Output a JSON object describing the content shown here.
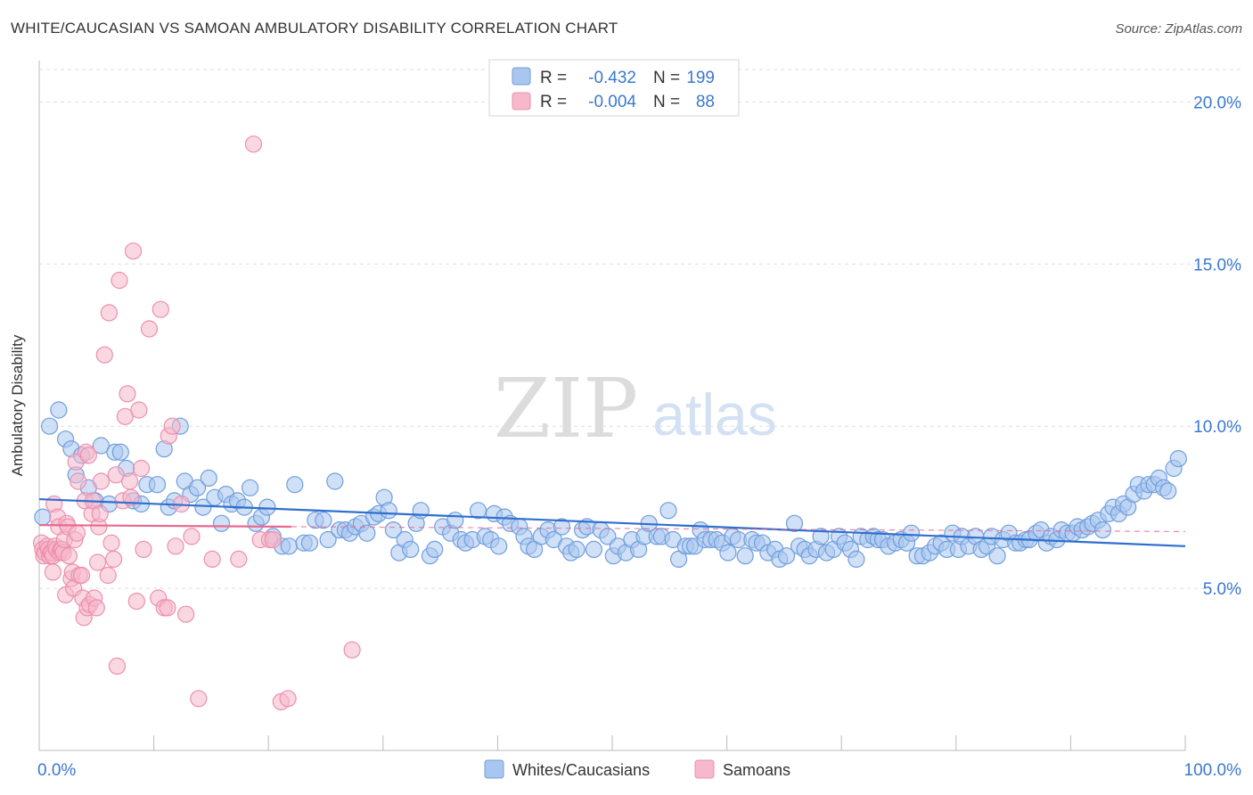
{
  "title": "WHITE/CAUCASIAN VS SAMOAN AMBULATORY DISABILITY CORRELATION CHART",
  "source": "Source: ZipAtlas.com",
  "watermark": {
    "zip": "ZIP",
    "atlas": "atlas"
  },
  "chart_data": {
    "type": "scatter",
    "ylabel": "Ambulatory Disability",
    "xlim": [
      0,
      100
    ],
    "ylim": [
      0,
      21
    ],
    "x_tick_labels": [
      {
        "value": 0,
        "label": "0.0%"
      },
      {
        "value": 100,
        "label": "100.0%"
      }
    ],
    "y_tick_labels": [
      {
        "value": 5,
        "label": "5.0%"
      },
      {
        "value": 10,
        "label": "10.0%"
      },
      {
        "value": 15,
        "label": "15.0%"
      },
      {
        "value": 20,
        "label": "20.0%"
      }
    ],
    "legend_stats": [
      {
        "r_label": "R =",
        "r_value": "-0.432",
        "n_label": "N =",
        "n_value": "199",
        "color": "#7aa6e0"
      },
      {
        "r_label": "R =",
        "r_value": "-0.004",
        "n_label": "N =",
        "n_value": "88",
        "color": "#f19bb6"
      }
    ],
    "series": [
      {
        "name": "Whites/Caucasians",
        "fill": "#a9c6ee",
        "stroke": "#6f9ede",
        "line_color": "#2f6fce",
        "trend": {
          "x": [
            0,
            100
          ],
          "y": [
            7.75,
            6.3
          ]
        },
        "points": [
          [
            0.3,
            7.2
          ],
          [
            0.9,
            10.0
          ],
          [
            1.7,
            10.5
          ],
          [
            2.3,
            9.6
          ],
          [
            2.8,
            9.3
          ],
          [
            3.2,
            8.5
          ],
          [
            3.7,
            9.1
          ],
          [
            4.3,
            8.1
          ],
          [
            4.9,
            7.7
          ],
          [
            5.4,
            9.4
          ],
          [
            6.1,
            7.6
          ],
          [
            6.6,
            9.2
          ],
          [
            7.1,
            9.2
          ],
          [
            7.6,
            8.7
          ],
          [
            8.2,
            7.7
          ],
          [
            8.9,
            7.6
          ],
          [
            9.4,
            8.2
          ],
          [
            10.3,
            8.2
          ],
          [
            10.9,
            9.3
          ],
          [
            11.3,
            7.5
          ],
          [
            11.8,
            7.7
          ],
          [
            12.3,
            10.0
          ],
          [
            12.7,
            8.3
          ],
          [
            13.2,
            7.9
          ],
          [
            13.8,
            8.1
          ],
          [
            14.3,
            7.5
          ],
          [
            14.8,
            8.4
          ],
          [
            15.3,
            7.8
          ],
          [
            15.9,
            7.0
          ],
          [
            16.3,
            7.9
          ],
          [
            16.8,
            7.6
          ],
          [
            17.3,
            7.7
          ],
          [
            17.9,
            7.5
          ],
          [
            18.4,
            8.1
          ],
          [
            18.9,
            7.0
          ],
          [
            19.4,
            7.2
          ],
          [
            19.9,
            7.5
          ],
          [
            20.4,
            6.6
          ],
          [
            21.2,
            6.3
          ],
          [
            21.8,
            6.3
          ],
          [
            22.3,
            8.2
          ],
          [
            23.1,
            6.4
          ],
          [
            23.6,
            6.4
          ],
          [
            24.1,
            7.1
          ],
          [
            24.8,
            7.1
          ],
          [
            25.2,
            6.5
          ],
          [
            25.8,
            8.3
          ],
          [
            26.2,
            6.8
          ],
          [
            26.7,
            6.8
          ],
          [
            27.1,
            6.7
          ],
          [
            27.6,
            6.9
          ],
          [
            28.1,
            7.0
          ],
          [
            28.6,
            6.7
          ],
          [
            29.2,
            7.2
          ],
          [
            29.6,
            7.3
          ],
          [
            30.1,
            7.8
          ],
          [
            30.5,
            7.4
          ],
          [
            30.9,
            6.8
          ],
          [
            31.4,
            6.1
          ],
          [
            31.9,
            6.5
          ],
          [
            32.4,
            6.2
          ],
          [
            32.9,
            7.0
          ],
          [
            33.3,
            7.4
          ],
          [
            34.1,
            6.0
          ],
          [
            34.5,
            6.2
          ],
          [
            35.2,
            6.9
          ],
          [
            35.9,
            6.7
          ],
          [
            36.3,
            7.1
          ],
          [
            36.8,
            6.5
          ],
          [
            37.2,
            6.4
          ],
          [
            37.8,
            6.5
          ],
          [
            38.3,
            7.4
          ],
          [
            38.9,
            6.6
          ],
          [
            39.4,
            6.5
          ],
          [
            39.7,
            7.3
          ],
          [
            40.1,
            6.3
          ],
          [
            40.6,
            7.2
          ],
          [
            41.1,
            7.0
          ],
          [
            41.9,
            6.9
          ],
          [
            42.3,
            6.6
          ],
          [
            42.7,
            6.3
          ],
          [
            43.2,
            6.2
          ],
          [
            43.8,
            6.6
          ],
          [
            44.4,
            6.8
          ],
          [
            44.9,
            6.5
          ],
          [
            45.6,
            6.9
          ],
          [
            46.0,
            6.3
          ],
          [
            46.4,
            6.1
          ],
          [
            46.9,
            6.2
          ],
          [
            47.4,
            6.8
          ],
          [
            47.8,
            6.9
          ],
          [
            48.4,
            6.2
          ],
          [
            49.0,
            6.8
          ],
          [
            49.6,
            6.6
          ],
          [
            50.1,
            6.0
          ],
          [
            50.5,
            6.3
          ],
          [
            51.2,
            6.1
          ],
          [
            51.7,
            6.5
          ],
          [
            52.3,
            6.2
          ],
          [
            52.8,
            6.6
          ],
          [
            53.2,
            7.0
          ],
          [
            53.9,
            6.6
          ],
          [
            54.3,
            6.6
          ],
          [
            54.9,
            7.4
          ],
          [
            55.3,
            6.5
          ],
          [
            55.8,
            5.9
          ],
          [
            56.4,
            6.3
          ],
          [
            56.8,
            6.3
          ],
          [
            57.2,
            6.3
          ],
          [
            57.7,
            6.8
          ],
          [
            58.1,
            6.5
          ],
          [
            58.6,
            6.5
          ],
          [
            59.1,
            6.5
          ],
          [
            59.6,
            6.4
          ],
          [
            60.1,
            6.1
          ],
          [
            60.5,
            6.6
          ],
          [
            61.0,
            6.5
          ],
          [
            61.6,
            6.0
          ],
          [
            62.2,
            6.5
          ],
          [
            62.6,
            6.4
          ],
          [
            63.1,
            6.4
          ],
          [
            63.6,
            6.1
          ],
          [
            64.2,
            6.2
          ],
          [
            64.6,
            5.9
          ],
          [
            65.2,
            6.0
          ],
          [
            65.9,
            7.0
          ],
          [
            66.3,
            6.3
          ],
          [
            66.8,
            6.2
          ],
          [
            67.2,
            6.0
          ],
          [
            67.8,
            6.2
          ],
          [
            68.2,
            6.6
          ],
          [
            68.7,
            6.1
          ],
          [
            69.3,
            6.2
          ],
          [
            69.8,
            6.6
          ],
          [
            70.3,
            6.4
          ],
          [
            70.8,
            6.2
          ],
          [
            71.3,
            5.9
          ],
          [
            71.7,
            6.6
          ],
          [
            72.3,
            6.5
          ],
          [
            72.8,
            6.6
          ],
          [
            73.2,
            6.5
          ],
          [
            73.6,
            6.5
          ],
          [
            74.1,
            6.3
          ],
          [
            74.7,
            6.4
          ],
          [
            75.2,
            6.5
          ],
          [
            75.7,
            6.4
          ],
          [
            76.1,
            6.7
          ],
          [
            76.6,
            6.0
          ],
          [
            77.1,
            6.0
          ],
          [
            77.7,
            6.1
          ],
          [
            78.2,
            6.3
          ],
          [
            78.7,
            6.4
          ],
          [
            79.2,
            6.2
          ],
          [
            79.7,
            6.7
          ],
          [
            80.2,
            6.2
          ],
          [
            80.5,
            6.6
          ],
          [
            81.1,
            6.3
          ],
          [
            81.7,
            6.6
          ],
          [
            82.2,
            6.2
          ],
          [
            82.7,
            6.3
          ],
          [
            83.1,
            6.6
          ],
          [
            83.6,
            6.0
          ],
          [
            84.1,
            6.5
          ],
          [
            84.6,
            6.7
          ],
          [
            85.2,
            6.4
          ],
          [
            85.6,
            6.4
          ],
          [
            86.1,
            6.5
          ],
          [
            86.4,
            6.5
          ],
          [
            87.0,
            6.7
          ],
          [
            87.4,
            6.8
          ],
          [
            87.9,
            6.4
          ],
          [
            88.3,
            6.6
          ],
          [
            88.8,
            6.5
          ],
          [
            89.2,
            6.8
          ],
          [
            89.7,
            6.7
          ],
          [
            90.2,
            6.7
          ],
          [
            90.6,
            6.9
          ],
          [
            91.0,
            6.8
          ],
          [
            91.5,
            6.9
          ],
          [
            91.9,
            7.0
          ],
          [
            92.4,
            7.1
          ],
          [
            92.8,
            6.8
          ],
          [
            93.3,
            7.3
          ],
          [
            93.7,
            7.5
          ],
          [
            94.2,
            7.3
          ],
          [
            94.6,
            7.6
          ],
          [
            95.0,
            7.5
          ],
          [
            95.5,
            7.9
          ],
          [
            95.9,
            8.2
          ],
          [
            96.4,
            8.0
          ],
          [
            96.8,
            8.2
          ],
          [
            97.3,
            8.2
          ],
          [
            97.7,
            8.4
          ],
          [
            98.1,
            8.1
          ],
          [
            98.5,
            8.0
          ],
          [
            99.0,
            8.7
          ],
          [
            99.4,
            9.0
          ]
        ]
      },
      {
        "name": "Samoans",
        "fill": "#f6b8cb",
        "stroke": "#ec8fae",
        "line_color": "#e8698f",
        "trend": {
          "x": [
            0,
            22
          ],
          "y": [
            6.95,
            6.9
          ]
        },
        "trend_dashed": {
          "x": [
            22,
            100
          ],
          "y": [
            6.9,
            6.75
          ]
        },
        "points": [
          [
            0.2,
            6.4
          ],
          [
            0.3,
            6.2
          ],
          [
            0.4,
            6.0
          ],
          [
            0.5,
            6.1
          ],
          [
            0.7,
            6.3
          ],
          [
            0.8,
            6.2
          ],
          [
            0.9,
            6.0
          ],
          [
            1.0,
            6.1
          ],
          [
            1.1,
            6.1
          ],
          [
            1.2,
            6.0
          ],
          [
            1.2,
            5.5
          ],
          [
            1.3,
            7.6
          ],
          [
            1.4,
            6.3
          ],
          [
            1.5,
            6.2
          ],
          [
            1.6,
            7.2
          ],
          [
            1.7,
            6.9
          ],
          [
            1.8,
            6.1
          ],
          [
            1.9,
            6.2
          ],
          [
            2.0,
            6.2
          ],
          [
            2.1,
            6.1
          ],
          [
            2.2,
            6.5
          ],
          [
            2.3,
            4.8
          ],
          [
            2.4,
            7.0
          ],
          [
            2.5,
            6.9
          ],
          [
            2.6,
            6.0
          ],
          [
            2.8,
            5.3
          ],
          [
            2.9,
            5.5
          ],
          [
            3.0,
            5.0
          ],
          [
            3.1,
            6.5
          ],
          [
            3.2,
            8.9
          ],
          [
            3.3,
            6.7
          ],
          [
            3.4,
            8.3
          ],
          [
            3.5,
            5.4
          ],
          [
            3.7,
            5.4
          ],
          [
            3.8,
            4.7
          ],
          [
            3.9,
            4.1
          ],
          [
            4.0,
            7.7
          ],
          [
            4.1,
            9.2
          ],
          [
            4.2,
            4.4
          ],
          [
            4.3,
            9.1
          ],
          [
            4.4,
            4.5
          ],
          [
            4.6,
            7.3
          ],
          [
            4.7,
            7.7
          ],
          [
            4.8,
            4.7
          ],
          [
            5.0,
            4.4
          ],
          [
            5.1,
            5.8
          ],
          [
            5.2,
            6.9
          ],
          [
            5.3,
            7.3
          ],
          [
            5.4,
            8.3
          ],
          [
            5.7,
            12.2
          ],
          [
            6.0,
            5.4
          ],
          [
            6.1,
            13.5
          ],
          [
            6.3,
            6.4
          ],
          [
            6.5,
            5.9
          ],
          [
            6.7,
            8.5
          ],
          [
            6.8,
            2.6
          ],
          [
            7.0,
            14.5
          ],
          [
            7.3,
            7.7
          ],
          [
            7.5,
            10.3
          ],
          [
            7.7,
            11.0
          ],
          [
            7.9,
            8.3
          ],
          [
            8.0,
            7.8
          ],
          [
            8.2,
            15.4
          ],
          [
            8.5,
            4.6
          ],
          [
            8.7,
            10.5
          ],
          [
            8.9,
            8.7
          ],
          [
            9.1,
            6.2
          ],
          [
            9.6,
            13.0
          ],
          [
            10.4,
            4.7
          ],
          [
            10.6,
            13.6
          ],
          [
            10.9,
            4.4
          ],
          [
            11.2,
            4.4
          ],
          [
            11.3,
            9.7
          ],
          [
            11.6,
            10.0
          ],
          [
            11.9,
            6.3
          ],
          [
            12.4,
            7.6
          ],
          [
            12.8,
            4.2
          ],
          [
            13.3,
            6.6
          ],
          [
            13.9,
            1.6
          ],
          [
            15.1,
            5.9
          ],
          [
            17.4,
            5.9
          ],
          [
            18.7,
            18.7
          ],
          [
            19.3,
            6.5
          ],
          [
            20.1,
            6.5
          ],
          [
            21.1,
            1.5
          ],
          [
            21.7,
            1.6
          ],
          [
            27.3,
            3.1
          ],
          [
            20.4,
            6.5
          ]
        ]
      }
    ]
  }
}
